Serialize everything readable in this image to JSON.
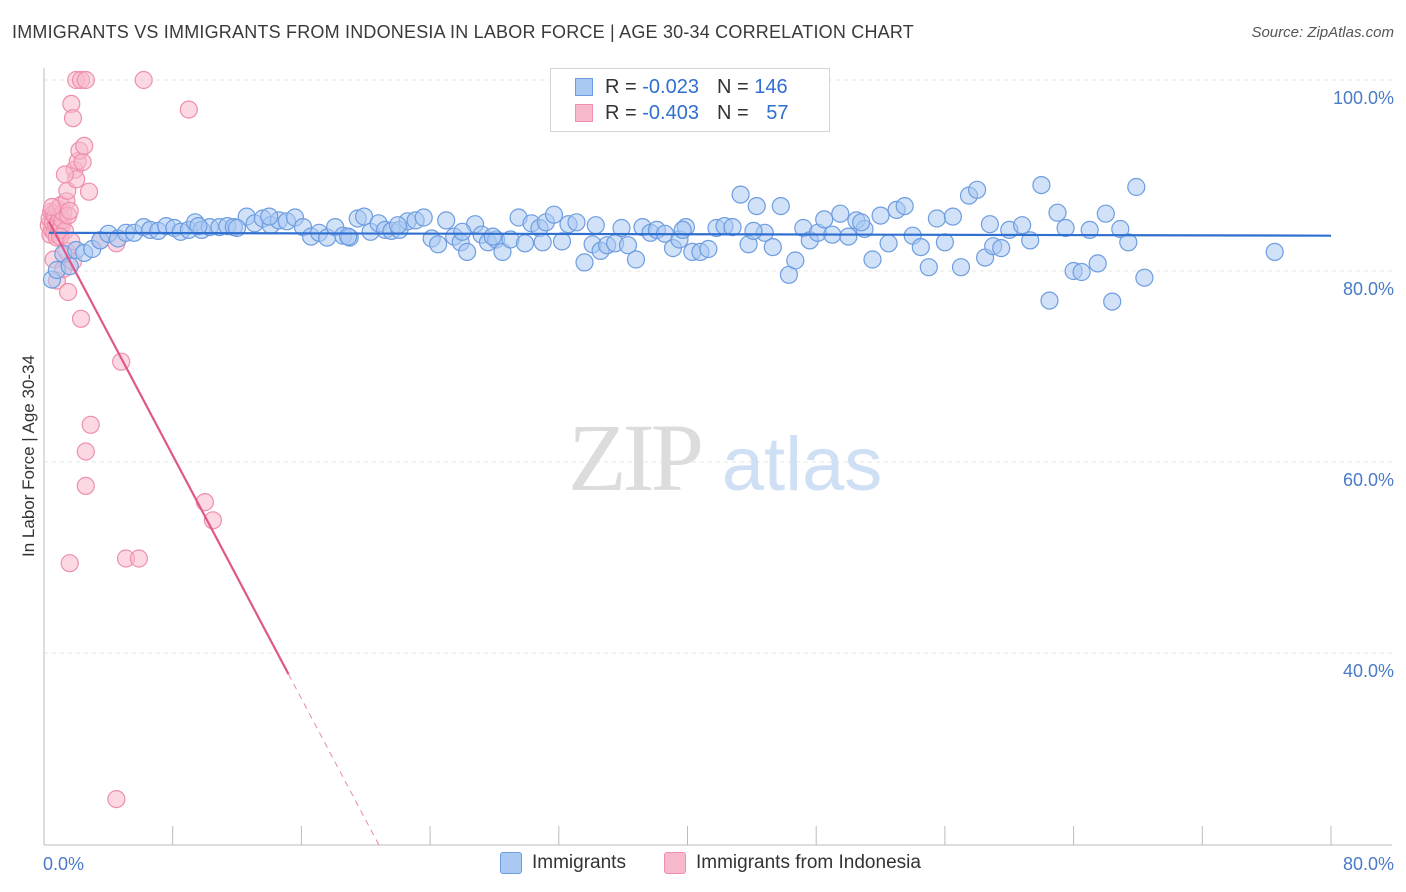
{
  "header": {
    "title": "IMMIGRANTS VS IMMIGRANTS FROM INDONESIA IN LABOR FORCE | AGE 30-34 CORRELATION CHART",
    "source": "Source: ZipAtlas.com"
  },
  "watermark": {
    "zip": "ZIP",
    "atlas": "atlas"
  },
  "legend": {
    "rows": [
      {
        "r_label": "R =",
        "r_value": "-0.023",
        "n_label": "N =",
        "n_value": "146"
      },
      {
        "r_label": "R =",
        "r_value": "-0.403",
        "n_label": "N =",
        "n_value": "57"
      }
    ]
  },
  "colors": {
    "blue_fill": "#a9c8f2",
    "blue_stroke": "#6e9de0",
    "blue_line": "#2f6fd0",
    "pink_fill": "#f7b8cb",
    "pink_stroke": "#ee8fac",
    "pink_line": "#e0578a",
    "grid": "#e4e4e4",
    "axis": "#bbbbbb"
  },
  "chart_data": {
    "type": "scatter",
    "title": "IMMIGRANTS VS IMMIGRANTS FROM INDONESIA IN LABOR FORCE | AGE 30-34 CORRELATION CHART",
    "xlabel": "",
    "ylabel": "In Labor Force | Age 30-34",
    "xlim": [
      0,
      80
    ],
    "ylim": [
      20,
      100
    ],
    "x_tick_labels": [
      "0.0%",
      "80.0%"
    ],
    "y_tick_labels": [
      "100.0%",
      "80.0%",
      "60.0%",
      "40.0%"
    ],
    "y_tick_values": [
      100,
      80,
      60,
      40
    ],
    "grid": true,
    "legend_position": "top-center",
    "series": [
      {
        "name": "Immigrants",
        "r": -0.023,
        "n": 146,
        "trend": {
          "x": [
            0.3,
            80
          ],
          "y": [
            84.0,
            83.7
          ],
          "dashed_from": null
        },
        "points": [
          [
            0.5,
            79.1
          ],
          [
            0.8,
            80.1
          ],
          [
            1.2,
            81.8
          ],
          [
            1.6,
            80.5
          ],
          [
            2.0,
            82.2
          ],
          [
            2.5,
            81.9
          ],
          [
            3.0,
            82.3
          ],
          [
            3.5,
            83.2
          ],
          [
            4.0,
            83.9
          ],
          [
            4.6,
            83.4
          ],
          [
            5.1,
            84.0
          ],
          [
            5.6,
            84.0
          ],
          [
            6.2,
            84.6
          ],
          [
            6.6,
            84.3
          ],
          [
            7.1,
            84.2
          ],
          [
            7.6,
            84.7
          ],
          [
            8.1,
            84.5
          ],
          [
            8.5,
            84.1
          ],
          [
            9.0,
            84.3
          ],
          [
            9.4,
            85.1
          ],
          [
            9.8,
            84.3
          ],
          [
            10.3,
            84.6
          ],
          [
            10.9,
            84.6
          ],
          [
            11.4,
            84.7
          ],
          [
            11.8,
            84.6
          ],
          [
            12.6,
            85.7
          ],
          [
            13.1,
            85.0
          ],
          [
            13.6,
            85.5
          ],
          [
            14.1,
            84.8
          ],
          [
            14.6,
            85.3
          ],
          [
            15.1,
            85.2
          ],
          [
            15.6,
            85.6
          ],
          [
            16.1,
            84.6
          ],
          [
            16.6,
            83.6
          ],
          [
            17.1,
            84.0
          ],
          [
            17.6,
            83.5
          ],
          [
            18.1,
            84.6
          ],
          [
            18.6,
            83.7
          ],
          [
            19.0,
            83.5
          ],
          [
            19.5,
            85.5
          ],
          [
            19.9,
            85.7
          ],
          [
            20.3,
            84.1
          ],
          [
            20.8,
            85.0
          ],
          [
            21.2,
            84.3
          ],
          [
            21.6,
            84.2
          ],
          [
            22.1,
            84.3
          ],
          [
            22.6,
            85.2
          ],
          [
            23.1,
            85.3
          ],
          [
            23.6,
            85.6
          ],
          [
            24.1,
            83.4
          ],
          [
            24.5,
            82.8
          ],
          [
            25.0,
            85.3
          ],
          [
            25.5,
            83.6
          ],
          [
            25.9,
            83.0
          ],
          [
            26.3,
            82.0
          ],
          [
            26.8,
            84.9
          ],
          [
            27.2,
            83.8
          ],
          [
            27.6,
            83.0
          ],
          [
            28.1,
            83.3
          ],
          [
            28.5,
            82.0
          ],
          [
            29.0,
            83.3
          ],
          [
            29.5,
            85.6
          ],
          [
            29.9,
            82.9
          ],
          [
            30.3,
            85.0
          ],
          [
            30.8,
            84.5
          ],
          [
            31.2,
            85.1
          ],
          [
            31.7,
            85.9
          ],
          [
            32.2,
            83.1
          ],
          [
            32.6,
            84.9
          ],
          [
            33.1,
            85.1
          ],
          [
            33.6,
            80.9
          ],
          [
            34.1,
            82.8
          ],
          [
            34.6,
            82.1
          ],
          [
            35.0,
            82.7
          ],
          [
            35.5,
            82.9
          ],
          [
            35.9,
            84.5
          ],
          [
            36.3,
            82.7
          ],
          [
            36.8,
            81.2
          ],
          [
            37.2,
            84.6
          ],
          [
            37.7,
            84.0
          ],
          [
            38.1,
            84.3
          ],
          [
            38.6,
            83.9
          ],
          [
            39.1,
            82.4
          ],
          [
            39.5,
            83.3
          ],
          [
            39.9,
            84.6
          ],
          [
            40.3,
            82.0
          ],
          [
            40.8,
            82.0
          ],
          [
            41.3,
            82.3
          ],
          [
            41.8,
            84.5
          ],
          [
            42.3,
            84.7
          ],
          [
            42.8,
            84.6
          ],
          [
            43.3,
            88.0
          ],
          [
            43.8,
            82.8
          ],
          [
            44.3,
            86.8
          ],
          [
            44.8,
            84.0
          ],
          [
            45.3,
            82.5
          ],
          [
            45.8,
            86.8
          ],
          [
            46.3,
            79.6
          ],
          [
            46.7,
            81.1
          ],
          [
            47.2,
            84.5
          ],
          [
            47.6,
            83.2
          ],
          [
            48.1,
            84.0
          ],
          [
            48.5,
            85.4
          ],
          [
            49.0,
            83.8
          ],
          [
            49.5,
            86.0
          ],
          [
            50.0,
            83.6
          ],
          [
            50.5,
            85.3
          ],
          [
            51.0,
            84.4
          ],
          [
            51.5,
            81.2
          ],
          [
            52.0,
            85.8
          ],
          [
            52.5,
            82.9
          ],
          [
            53.0,
            86.4
          ],
          [
            53.5,
            86.8
          ],
          [
            54.0,
            83.7
          ],
          [
            54.5,
            82.5
          ],
          [
            55.0,
            80.4
          ],
          [
            55.5,
            85.5
          ],
          [
            56.0,
            83.0
          ],
          [
            56.5,
            85.7
          ],
          [
            57.0,
            80.4
          ],
          [
            57.5,
            87.9
          ],
          [
            58.0,
            88.5
          ],
          [
            58.5,
            81.4
          ],
          [
            59.0,
            82.6
          ],
          [
            59.5,
            82.4
          ],
          [
            60.0,
            84.3
          ],
          [
            60.8,
            84.8
          ],
          [
            62.0,
            89.0
          ],
          [
            62.5,
            76.9
          ],
          [
            63.0,
            86.1
          ],
          [
            63.5,
            84.5
          ],
          [
            64.0,
            80.0
          ],
          [
            64.5,
            79.9
          ],
          [
            65.0,
            84.3
          ],
          [
            65.5,
            80.8
          ],
          [
            66.0,
            86.0
          ],
          [
            66.4,
            76.8
          ],
          [
            66.9,
            84.4
          ],
          [
            67.4,
            83.0
          ],
          [
            67.9,
            88.8
          ],
          [
            68.4,
            79.3
          ],
          [
            76.5,
            82.0
          ],
          [
            14.0,
            85.7
          ],
          [
            22.0,
            84.8
          ],
          [
            9.6,
            84.7
          ],
          [
            12.0,
            84.5
          ],
          [
            18.9,
            83.6
          ],
          [
            27.9,
            83.6
          ],
          [
            34.3,
            84.8
          ],
          [
            44.1,
            84.2
          ],
          [
            50.8,
            85.1
          ],
          [
            58.8,
            84.9
          ],
          [
            61.3,
            83.2
          ],
          [
            31.0,
            83.0
          ],
          [
            39.7,
            84.3
          ],
          [
            26.0,
            84.1
          ]
        ]
      },
      {
        "name": "Immigrants from Indonesia",
        "r": -0.403,
        "n": 57,
        "trend": {
          "x": [
            0.3,
            25.5
          ],
          "y": [
            85.2,
            5.0
          ],
          "dashed_from": 15.2
        },
        "points": [
          [
            0.3,
            84.8
          ],
          [
            0.35,
            85.5
          ],
          [
            0.4,
            83.8
          ],
          [
            0.45,
            86.2
          ],
          [
            0.5,
            84.3
          ],
          [
            0.55,
            85.0
          ],
          [
            0.6,
            86.0
          ],
          [
            0.65,
            84.0
          ],
          [
            0.7,
            85.7
          ],
          [
            0.75,
            84.9
          ],
          [
            0.8,
            83.5
          ],
          [
            0.85,
            86.5
          ],
          [
            0.9,
            85.1
          ],
          [
            0.95,
            84.3
          ],
          [
            1.0,
            85.6
          ],
          [
            1.05,
            86.9
          ],
          [
            1.1,
            84.7
          ],
          [
            1.15,
            85.3
          ],
          [
            1.2,
            86.1
          ],
          [
            1.3,
            84.2
          ],
          [
            1.4,
            87.3
          ],
          [
            1.45,
            88.4
          ],
          [
            1.5,
            85.8
          ],
          [
            1.6,
            86.3
          ],
          [
            0.6,
            81.2
          ],
          [
            0.8,
            79.0
          ],
          [
            1.0,
            83.6
          ],
          [
            1.2,
            80.2
          ],
          [
            1.4,
            82.1
          ],
          [
            1.5,
            77.8
          ],
          [
            1.7,
            83.1
          ],
          [
            1.8,
            81.0
          ],
          [
            1.9,
            90.6
          ],
          [
            2.0,
            89.6
          ],
          [
            2.1,
            91.5
          ],
          [
            2.2,
            92.6
          ],
          [
            2.4,
            91.4
          ],
          [
            2.5,
            93.1
          ],
          [
            1.7,
            97.5
          ],
          [
            1.8,
            96.0
          ],
          [
            2.0,
            100.0
          ],
          [
            2.3,
            100.0
          ],
          [
            2.6,
            100.0
          ],
          [
            6.2,
            100.0
          ],
          [
            9.0,
            96.9
          ],
          [
            1.3,
            90.1
          ],
          [
            2.8,
            88.3
          ],
          [
            3.5,
            83.2
          ],
          [
            4.5,
            82.9
          ],
          [
            2.3,
            75.0
          ],
          [
            4.8,
            70.5
          ],
          [
            2.9,
            63.9
          ],
          [
            2.6,
            61.1
          ],
          [
            2.6,
            57.5
          ],
          [
            10.0,
            55.8
          ],
          [
            10.5,
            53.9
          ],
          [
            1.6,
            49.4
          ],
          [
            5.1,
            49.9
          ],
          [
            5.9,
            49.9
          ],
          [
            4.5,
            24.7
          ],
          [
            0.5,
            86.7
          ]
        ]
      }
    ]
  }
}
